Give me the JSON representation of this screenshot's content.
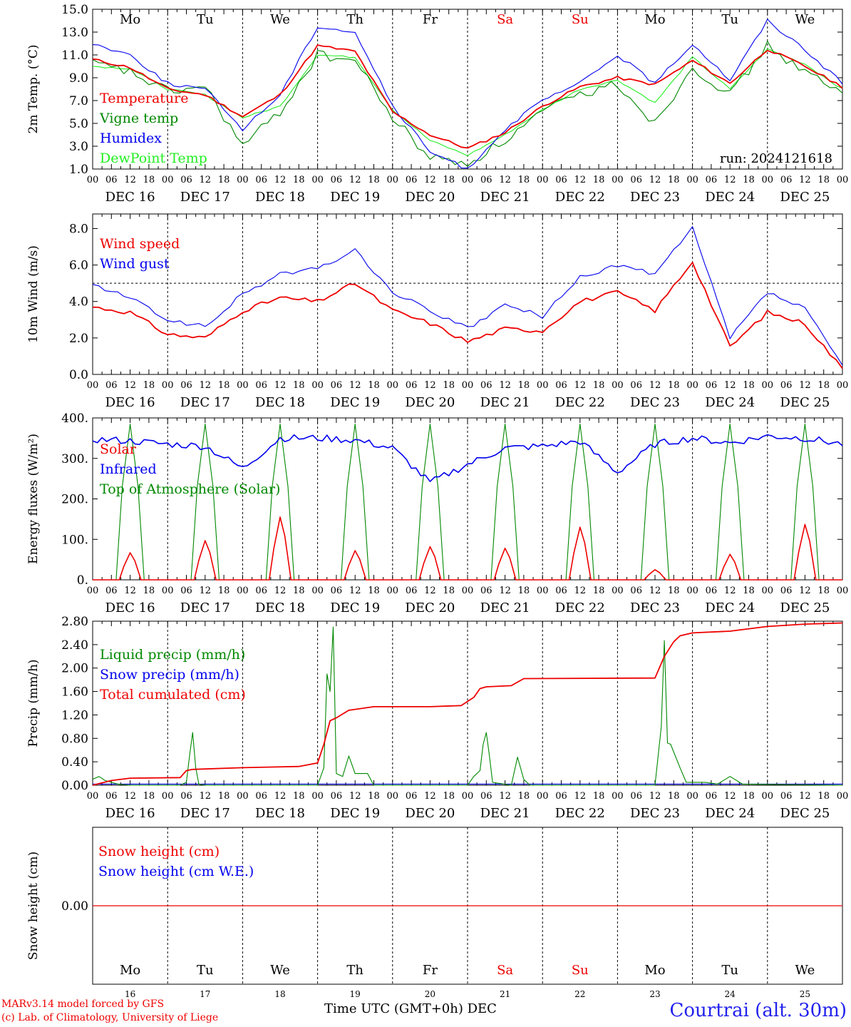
{
  "chart_data": [
    {
      "type": "line",
      "ylabel": "2m Temp. (°C)",
      "yticks": [
        "1.0",
        "3.0",
        "5.0",
        "7.0",
        "9.0",
        "11.0",
        "13.0",
        "15.0"
      ],
      "ylim": [
        1,
        15
      ],
      "x_hours": [
        0,
        12,
        24,
        36,
        48,
        60,
        72,
        84,
        96,
        108,
        120,
        132,
        144,
        156,
        168,
        180,
        192,
        204,
        216,
        228,
        240
      ],
      "series": [
        {
          "name": "Temperature",
          "color": "#ee0000",
          "values": [
            10.6,
            9.9,
            8.0,
            7.5,
            5.6,
            7.5,
            11.8,
            11.3,
            6.0,
            4.0,
            2.8,
            4.2,
            6.5,
            8.2,
            9.0,
            8.4,
            10.5,
            8.5,
            11.5,
            10.0,
            8.2
          ]
        },
        {
          "name": "Vigne temp",
          "color": "#008800",
          "values": [
            10.2,
            9.5,
            7.8,
            8.2,
            3.0,
            6.0,
            11.0,
            10.5,
            5.5,
            2.0,
            1.5,
            3.5,
            6.0,
            7.5,
            8.5,
            5.0,
            10.0,
            7.5,
            11.8,
            9.5,
            7.5
          ]
        },
        {
          "name": "Humidex",
          "color": "#0000ee",
          "values": [
            12.0,
            11.0,
            8.5,
            8.0,
            4.5,
            7.5,
            13.5,
            13.0,
            6.5,
            2.5,
            1.0,
            4.5,
            7.0,
            8.5,
            11.0,
            8.5,
            12.0,
            8.8,
            14.0,
            11.5,
            8.5
          ]
        },
        {
          "name": "DewPoint Temp",
          "color": "#22ee22",
          "values": [
            10.0,
            9.8,
            8.0,
            7.5,
            5.5,
            6.5,
            11.0,
            10.8,
            6.2,
            3.5,
            2.2,
            4.0,
            6.2,
            8.0,
            8.8,
            6.8,
            10.8,
            8.0,
            11.5,
            10.2,
            8.0
          ]
        }
      ],
      "annotation": "run: 2024121618",
      "day_labels": [
        "Mo",
        "Tu",
        "We",
        "Th",
        "Fr",
        "Sa",
        "Su",
        "Mo",
        "Tu",
        "We"
      ],
      "date_labels": [
        "DEC 16",
        "DEC 17",
        "DEC 18",
        "DEC 19",
        "DEC 20",
        "DEC 21",
        "DEC 22",
        "DEC 23",
        "DEC 24",
        "DEC 25"
      ]
    },
    {
      "type": "line",
      "ylabel": "10m Wind (m/s)",
      "yticks": [
        "0.0",
        "2.0",
        "4.0",
        "6.0",
        "8.0"
      ],
      "ylim": [
        0,
        8.8
      ],
      "reference_line": 5.0,
      "x_hours": [
        0,
        12,
        24,
        36,
        48,
        60,
        72,
        84,
        96,
        108,
        120,
        132,
        144,
        156,
        168,
        180,
        192,
        204,
        216,
        228,
        240
      ],
      "series": [
        {
          "name": "Wind speed",
          "color": "#ee0000",
          "values": [
            3.7,
            3.4,
            2.2,
            2.0,
            3.5,
            4.2,
            4.0,
            5.0,
            3.5,
            2.8,
            1.8,
            2.5,
            2.4,
            4.0,
            4.5,
            3.5,
            6.2,
            1.5,
            3.4,
            2.8,
            0.3
          ]
        },
        {
          "name": "Wind gust",
          "color": "#0000ee",
          "values": [
            4.9,
            4.2,
            3.0,
            2.6,
            4.4,
            5.5,
            5.8,
            6.8,
            4.5,
            3.5,
            2.5,
            3.8,
            3.2,
            5.3,
            6.0,
            5.5,
            8.0,
            2.0,
            4.5,
            3.6,
            0.5
          ]
        }
      ],
      "date_labels": [
        "DEC 16",
        "DEC 17",
        "DEC 18",
        "DEC 19",
        "DEC 20",
        "DEC 21",
        "DEC 22",
        "DEC 23",
        "DEC 24",
        "DEC 25"
      ]
    },
    {
      "type": "line",
      "ylabel": "Energy fluxes (W/m²)",
      "yticks": [
        "0.",
        "100.",
        "200.",
        "300.",
        "400."
      ],
      "ylim": [
        0,
        400
      ],
      "series": [
        {
          "name": "Solar",
          "color": "#ee0000",
          "daily_peaks": [
            67,
            97,
            155,
            72,
            82,
            78,
            130,
            25,
            63,
            137
          ]
        },
        {
          "name": "Infrared",
          "color": "#0000ee",
          "x_hours": [
            0,
            12,
            24,
            36,
            48,
            60,
            72,
            84,
            96,
            108,
            120,
            132,
            144,
            156,
            168,
            180,
            192,
            204,
            216,
            228,
            240
          ],
          "values": [
            347,
            343,
            335,
            330,
            275,
            350,
            350,
            345,
            325,
            240,
            285,
            325,
            330,
            342,
            265,
            335,
            350,
            338,
            355,
            350,
            335
          ]
        },
        {
          "name": "Top of Atmosphere (Solar)",
          "color": "#008800",
          "daily_peaks": [
            385,
            385,
            385,
            385,
            385,
            385,
            385,
            385,
            385,
            385
          ]
        }
      ],
      "date_labels": [
        "DEC 16",
        "DEC 17",
        "DEC 18",
        "DEC 19",
        "DEC 20",
        "DEC 21",
        "DEC 22",
        "DEC 23",
        "DEC 24",
        "DEC 25"
      ]
    },
    {
      "type": "line",
      "ylabel": "Precip (mm/h)",
      "yticks": [
        "0.00",
        "0.40",
        "0.80",
        "1.20",
        "1.60",
        "2.00",
        "2.40",
        "2.80"
      ],
      "ylim": [
        0,
        2.8
      ],
      "series": [
        {
          "name": "Liquid precip (mm/h)",
          "color": "#008800",
          "points": [
            [
              0,
              0.1
            ],
            [
              2,
              0.15
            ],
            [
              4,
              0.08
            ],
            [
              8,
              0.02
            ],
            [
              12,
              0
            ],
            [
              28,
              0
            ],
            [
              30,
              0.05
            ],
            [
              31,
              0.5
            ],
            [
              32,
              0.9
            ],
            [
              33,
              0.3
            ],
            [
              34,
              0.02
            ],
            [
              36,
              0
            ],
            [
              72,
              0
            ],
            [
              74,
              0.3
            ],
            [
              75,
              1.9
            ],
            [
              76,
              1.6
            ],
            [
              77,
              2.7
            ],
            [
              78,
              0.2
            ],
            [
              80,
              0.15
            ],
            [
              82,
              0.5
            ],
            [
              84,
              0.2
            ],
            [
              88,
              0.2
            ],
            [
              90,
              0
            ],
            [
              120,
              0
            ],
            [
              122,
              0.15
            ],
            [
              124,
              0.25
            ],
            [
              125,
              0.7
            ],
            [
              126,
              0.9
            ],
            [
              127,
              0.5
            ],
            [
              128,
              0.05
            ],
            [
              134,
              0
            ],
            [
              136,
              0.48
            ],
            [
              138,
              0.1
            ],
            [
              140,
              0
            ],
            [
              180,
              0
            ],
            [
              182,
              1.0
            ],
            [
              183,
              2.47
            ],
            [
              184,
              0.72
            ],
            [
              185,
              0.7
            ],
            [
              188,
              0.3
            ],
            [
              190,
              0.05
            ],
            [
              196,
              0.05
            ],
            [
              200,
              0.02
            ],
            [
              204,
              0.15
            ],
            [
              208,
              0.02
            ],
            [
              240,
              0
            ]
          ]
        },
        {
          "name": "Snow precip (mm/h)",
          "color": "#0000ee",
          "points": [
            [
              0,
              0.02
            ],
            [
              240,
              0.02
            ]
          ]
        },
        {
          "name": "Total cumulated (cm)",
          "color": "#ee0000",
          "points": [
            [
              0,
              0
            ],
            [
              6,
              0.08
            ],
            [
              12,
              0.12
            ],
            [
              28,
              0.13
            ],
            [
              30,
              0.25
            ],
            [
              32,
              0.27
            ],
            [
              48,
              0.3
            ],
            [
              66,
              0.32
            ],
            [
              72,
              0.38
            ],
            [
              74,
              0.7
            ],
            [
              76,
              1.1
            ],
            [
              78,
              1.15
            ],
            [
              82,
              1.28
            ],
            [
              90,
              1.34
            ],
            [
              108,
              1.34
            ],
            [
              118,
              1.36
            ],
            [
              122,
              1.5
            ],
            [
              124,
              1.65
            ],
            [
              126,
              1.68
            ],
            [
              134,
              1.7
            ],
            [
              138,
              1.82
            ],
            [
              180,
              1.83
            ],
            [
              183,
              2.2
            ],
            [
              186,
              2.45
            ],
            [
              188,
              2.55
            ],
            [
              192,
              2.6
            ],
            [
              204,
              2.63
            ],
            [
              216,
              2.71
            ],
            [
              228,
              2.75
            ],
            [
              240,
              2.77
            ]
          ]
        }
      ],
      "date_labels": [
        "DEC 16",
        "DEC 17",
        "DEC 18",
        "DEC 19",
        "DEC 20",
        "DEC 21",
        "DEC 22",
        "DEC 23",
        "DEC 24",
        "DEC 25"
      ]
    },
    {
      "type": "line",
      "ylabel": "Snow height (cm)",
      "yticks": [
        "0.00"
      ],
      "series": [
        {
          "name": "Snow height (cm)",
          "color": "#ee0000",
          "values": [
            0,
            0
          ]
        },
        {
          "name": "Snow height (cm W.E.)",
          "color": "#0000ee",
          "values": [
            0,
            0
          ]
        }
      ],
      "day_labels": [
        "Mo",
        "Tu",
        "We",
        "Th",
        "Fr",
        "Sa",
        "Su",
        "Mo",
        "Tu",
        "We"
      ],
      "day_numbers": [
        "16",
        "17",
        "18",
        "19",
        "20",
        "21",
        "22",
        "23",
        "24",
        "25"
      ]
    }
  ],
  "hour_ticks": [
    "00",
    "06",
    "12",
    "18"
  ],
  "weekend_color": "#ee0000",
  "xlabel": "Time UTC (GMT+0h)",
  "xlabel_month": "DEC",
  "credit_line1": "MARv3.14 model forced by GFS",
  "credit_line2": "(c) Lab. of Climatology, University of Liege",
  "station": "Courtrai (alt. 30m)"
}
